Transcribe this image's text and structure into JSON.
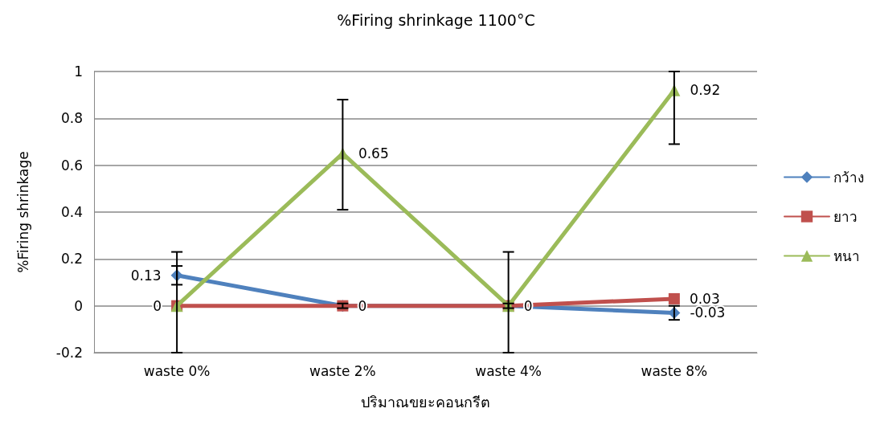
{
  "chart_data": {
    "type": "line",
    "title": "%Firing shrinkage 1100°C",
    "xlabel": "ปริมาณขยะคอนกรีต",
    "ylabel": "%Firing shrinkage",
    "categories": [
      "waste 0%",
      "waste 2%",
      "waste 4%",
      "waste 8%"
    ],
    "series": [
      {
        "name": "กว้าง",
        "color": "#4f81bd",
        "marker": "diamond",
        "values": [
          0.13,
          0,
          0,
          -0.03
        ],
        "errors": [
          [
            0.09,
            0.17
          ],
          [
            -0.01,
            0.01
          ],
          null,
          [
            -0.06,
            0
          ]
        ],
        "value_labels": [
          "0.13",
          null,
          null,
          "-0.03"
        ]
      },
      {
        "name": "ยาว",
        "color": "#c0504d",
        "marker": "square",
        "values": [
          0,
          0,
          0,
          0.03
        ],
        "errors": [
          null,
          null,
          [
            -0.01,
            0.01
          ],
          null
        ],
        "value_labels": [
          "0",
          "0",
          "0",
          "0.03"
        ]
      },
      {
        "name": "หนา",
        "color": "#9bbb59",
        "marker": "triangle",
        "values": [
          0,
          0.65,
          0,
          0.92
        ],
        "errors": [
          [
            -0.2,
            0.23
          ],
          [
            0.41,
            0.88
          ],
          [
            -0.2,
            0.23
          ],
          [
            0.69,
            1
          ]
        ],
        "value_labels": [
          null,
          "0.65",
          null,
          "0.92"
        ]
      }
    ],
    "ylim": [
      -0.2,
      1
    ],
    "yticks": [
      -0.2,
      0,
      0.2,
      0.4,
      0.6,
      0.8,
      1
    ],
    "grid": "y",
    "legend": "right",
    "line_style": "solid"
  }
}
